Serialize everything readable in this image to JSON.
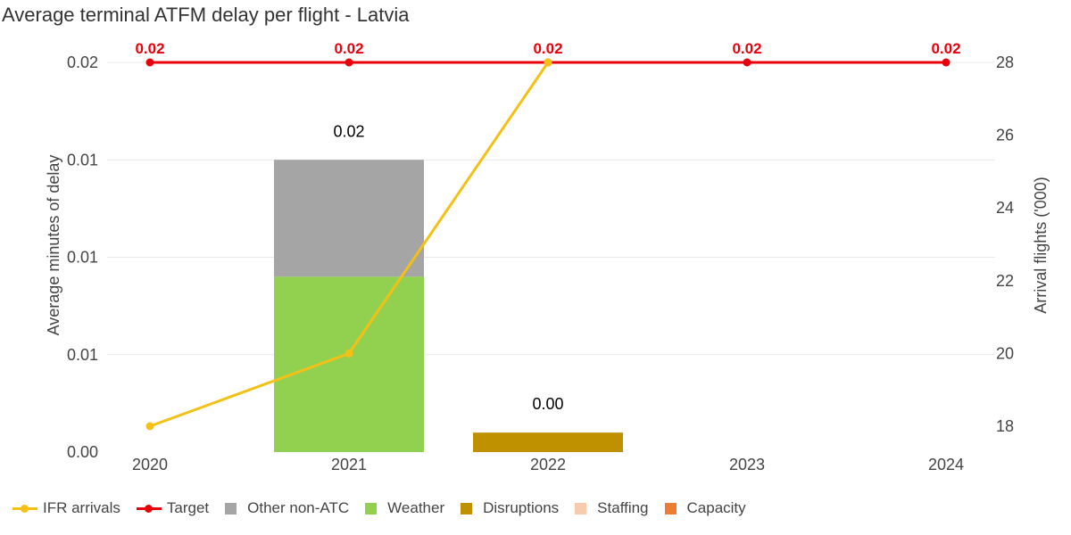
{
  "title": "Average terminal ATFM delay per flight - Latvia",
  "colors": {
    "ifr": "#f5c016",
    "target": "#e8000b",
    "other_non_atc": "#a5a5a5",
    "weather": "#92d050",
    "disruptions": "#bf9000",
    "staffing": "#f8cbad",
    "capacity": "#ed7d31",
    "grid": "#e8e8e8"
  },
  "legend": [
    {
      "label": "IFR arrivals",
      "kind": "line",
      "color": "#f5c016"
    },
    {
      "label": "Target",
      "kind": "line",
      "color": "#e8000b"
    },
    {
      "label": "Other non-ATC",
      "kind": "swatch",
      "color": "#a5a5a5"
    },
    {
      "label": "Weather",
      "kind": "swatch",
      "color": "#92d050"
    },
    {
      "label": "Disruptions",
      "kind": "swatch",
      "color": "#bf9000"
    },
    {
      "label": "Staffing",
      "kind": "swatch",
      "color": "#f8cbad"
    },
    {
      "label": "Capacity",
      "kind": "swatch",
      "color": "#ed7d31"
    }
  ],
  "chart_data": {
    "type": "bar",
    "stacked": true,
    "title": "Average terminal ATFM delay per flight - Latvia",
    "categories": [
      "2020",
      "2021",
      "2022",
      "2023",
      "2024"
    ],
    "ylabel": "Average minutes of delay",
    "ylabel_right": "Arrival flights ('000)",
    "ylim": [
      0,
      0.02
    ],
    "y_ticks": [
      0,
      0.005,
      0.01,
      0.015,
      0.02
    ],
    "y_tick_labels": [
      "0.00",
      "0.01",
      "0.01",
      "0.01",
      "0.02"
    ],
    "y2lim": [
      17.3,
      28
    ],
    "y2_ticks": [
      18,
      20,
      22,
      24,
      26,
      28
    ],
    "y2_tick_labels": [
      "18",
      "20",
      "22",
      "24",
      "26",
      "28"
    ],
    "series": [
      {
        "name": "Other non-ATC",
        "color": "#a5a5a5",
        "values": [
          0,
          0.006,
          0,
          0,
          0
        ]
      },
      {
        "name": "Weather",
        "color": "#92d050",
        "values": [
          0,
          0.009,
          0,
          0,
          0
        ]
      },
      {
        "name": "Disruptions",
        "color": "#bf9000",
        "values": [
          0,
          0,
          0.001,
          0,
          0
        ]
      },
      {
        "name": "Staffing",
        "color": "#f8cbad",
        "values": [
          0,
          0,
          0,
          0,
          0
        ]
      },
      {
        "name": "Capacity",
        "color": "#ed7d31",
        "values": [
          0,
          0,
          0,
          0,
          0
        ]
      }
    ],
    "bar_totals": [
      "",
      "0.02",
      "0.00",
      "",
      ""
    ],
    "target": {
      "name": "Target",
      "values": [
        0.02,
        0.02,
        0.02,
        0.02,
        0.02
      ],
      "labels": [
        "0.02",
        "0.02",
        "0.02",
        "0.02",
        "0.02"
      ]
    },
    "ifr_arrivals": {
      "name": "IFR arrivals",
      "axis": "right",
      "values": [
        18.0,
        20.0,
        28.0,
        null,
        null
      ]
    },
    "grid": true,
    "legend_position": "bottom-left"
  }
}
